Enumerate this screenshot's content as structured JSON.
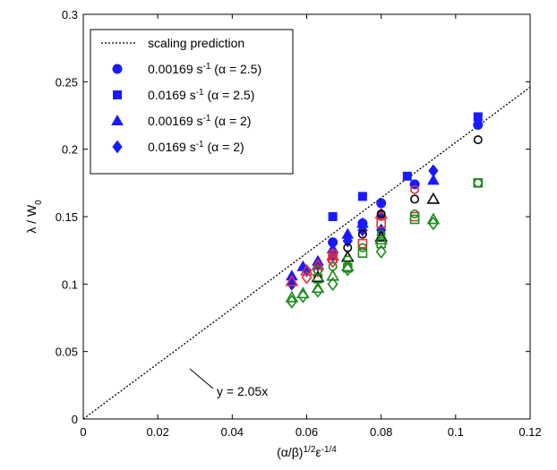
{
  "chart_data": {
    "type": "scatter",
    "xlabel": [
      {
        "text": "(α/β)"
      },
      {
        "text": "1/2",
        "sup": true
      },
      {
        "text": "ε"
      },
      {
        "text": "-1/4",
        "sup": true
      }
    ],
    "ylabel": [
      {
        "text": "λ / W"
      },
      {
        "text": "0",
        "sub": true
      }
    ],
    "xlim": [
      0,
      0.12
    ],
    "ylim": [
      0,
      0.3
    ],
    "xticks": [
      0,
      0.02,
      0.04,
      0.06,
      0.08,
      0.1,
      0.12
    ],
    "yticks": [
      0,
      0.05,
      0.1,
      0.15,
      0.2,
      0.25,
      0.3
    ],
    "grid": false,
    "legend": "upper left",
    "annotation": "y = 2.05x",
    "series": [
      {
        "name": [
          {
            "text": "scaling prediction"
          }
        ],
        "type": "line",
        "style": "dotted",
        "color": "#000000",
        "x": [
          0,
          0.12
        ],
        "values": [
          0,
          0.246
        ]
      },
      {
        "name": [
          {
            "text": "0.00169 s"
          },
          {
            "text": "-1",
            "sup": true
          },
          {
            "text": " (α = 2.5)"
          }
        ],
        "marker": "circle",
        "filled": true,
        "color": "#1a1aff",
        "x": [
          0.067,
          0.075,
          0.08,
          0.089,
          0.106
        ],
        "values": [
          0.131,
          0.145,
          0.16,
          0.174,
          0.218
        ]
      },
      {
        "name": [
          {
            "text": "0.0169 s"
          },
          {
            "text": "-1",
            "sup": true
          },
          {
            "text": " (α = 2.5)"
          }
        ],
        "marker": "square",
        "filled": true,
        "color": "#1a1aff",
        "x": [
          0.067,
          0.075,
          0.087,
          0.106
        ],
        "values": [
          0.15,
          0.165,
          0.18,
          0.224
        ]
      },
      {
        "name": [
          {
            "text": "0.00169 s"
          },
          {
            "text": "-1",
            "sup": true
          },
          {
            "text": " (α = 2)"
          }
        ],
        "marker": "triangle",
        "filled": true,
        "color": "#1a1aff",
        "x": [
          0.056,
          0.059,
          0.063,
          0.067,
          0.071,
          0.075,
          0.08,
          0.094
        ],
        "values": [
          0.106,
          0.113,
          0.117,
          0.126,
          0.137,
          0.145,
          0.152,
          0.177
        ]
      },
      {
        "name": [
          {
            "text": "0.0169 s"
          },
          {
            "text": "-1",
            "sup": true
          },
          {
            "text": " (α = 2)"
          }
        ],
        "marker": "diamond",
        "filled": true,
        "color": "#1a1aff",
        "x": [
          0.056,
          0.06,
          0.063,
          0.067,
          0.071,
          0.075,
          0.08,
          0.094
        ],
        "values": [
          0.1,
          0.11,
          0.114,
          0.121,
          0.132,
          0.14,
          0.14,
          0.184
        ]
      },
      {
        "marker": "circle",
        "filled": false,
        "color": "#e0303a",
        "x": [
          0.067,
          0.075,
          0.08,
          0.089
        ],
        "values": [
          0.123,
          0.137,
          0.15,
          0.17
        ]
      },
      {
        "marker": "square",
        "filled": false,
        "color": "#e0303a",
        "x": [
          0.067,
          0.075,
          0.08,
          0.089
        ],
        "values": [
          0.119,
          0.13,
          0.145,
          0.15
        ]
      },
      {
        "marker": "triangle",
        "filled": false,
        "color": "#e0303a",
        "x": [
          0.056,
          0.06,
          0.063,
          0.067,
          0.08
        ],
        "values": [
          0.102,
          0.11,
          0.114,
          0.121,
          0.152
        ]
      },
      {
        "marker": "diamond",
        "filled": false,
        "color": "#e0303a",
        "x": [
          0.06,
          0.063,
          0.067
        ],
        "values": [
          0.105,
          0.11,
          0.117
        ]
      },
      {
        "marker": "circle",
        "filled": false,
        "color": "#000000",
        "x": [
          0.071,
          0.075,
          0.08,
          0.089,
          0.106
        ],
        "values": [
          0.127,
          0.137,
          0.152,
          0.163,
          0.207
        ]
      },
      {
        "marker": "triangle",
        "filled": false,
        "color": "#000000",
        "x": [
          0.063,
          0.071,
          0.08,
          0.094
        ],
        "values": [
          0.105,
          0.12,
          0.135,
          0.163
        ]
      },
      {
        "marker": "circle",
        "filled": false,
        "color": "#1f8a1f",
        "x": [
          0.063,
          0.067,
          0.071,
          0.075,
          0.08,
          0.089,
          0.106
        ],
        "values": [
          0.11,
          0.113,
          0.118,
          0.127,
          0.137,
          0.152,
          0.175
        ]
      },
      {
        "marker": "square",
        "filled": false,
        "color": "#1f8a1f",
        "x": [
          0.063,
          0.071,
          0.075,
          0.08,
          0.089,
          0.106
        ],
        "values": [
          0.104,
          0.112,
          0.123,
          0.13,
          0.148,
          0.175
        ]
      },
      {
        "marker": "triangle",
        "filled": false,
        "color": "#1f8a1f",
        "x": [
          0.056,
          0.059,
          0.063,
          0.067,
          0.071,
          0.08,
          0.094
        ],
        "values": [
          0.09,
          0.093,
          0.097,
          0.106,
          0.113,
          0.133,
          0.148
        ]
      },
      {
        "marker": "diamond",
        "filled": false,
        "color": "#1f8a1f",
        "x": [
          0.056,
          0.059,
          0.063,
          0.067,
          0.071,
          0.08,
          0.094
        ],
        "values": [
          0.087,
          0.091,
          0.095,
          0.1,
          0.111,
          0.124,
          0.145
        ]
      }
    ]
  }
}
